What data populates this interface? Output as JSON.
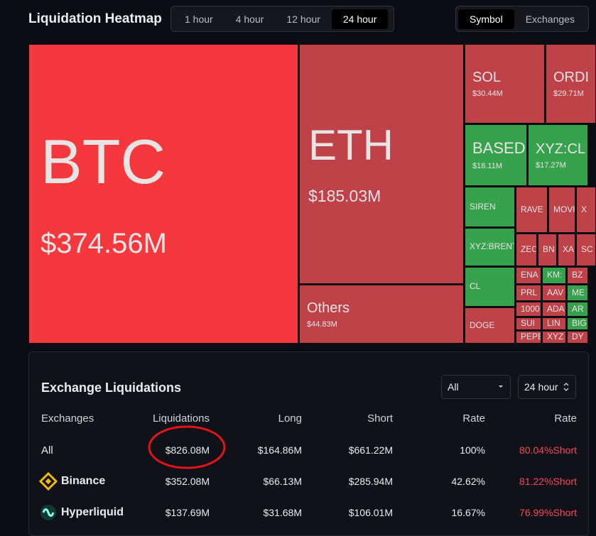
{
  "header": {
    "title": "Liquidation Heatmap",
    "time_tabs": [
      "1 hour",
      "4 hour",
      "12 hour",
      "24 hour"
    ],
    "view_tabs": [
      "Symbol",
      "Exchanges"
    ]
  },
  "heatmap": {
    "tiles": [
      {
        "symbol": "BTC",
        "value": "$374.56M"
      },
      {
        "symbol": "ETH",
        "value": "$185.03M"
      },
      {
        "symbol": "Others",
        "value": "$44.83M"
      },
      {
        "symbol": "SOL",
        "value": "$30.44M"
      },
      {
        "symbol": "ORDI",
        "value": "$29.71M"
      },
      {
        "symbol": "BASED",
        "value": "$18.11M"
      },
      {
        "symbol": "XYZ:CL",
        "value": "$17.27M"
      },
      {
        "symbol": "SIREN"
      },
      {
        "symbol": "XYZ:BRENT"
      },
      {
        "symbol": "CL"
      },
      {
        "symbol": "DOGE"
      },
      {
        "symbol": "RAVE"
      },
      {
        "symbol": "MOVR"
      },
      {
        "symbol": "X"
      },
      {
        "symbol": "ZEC"
      },
      {
        "symbol": "BN"
      },
      {
        "symbol": "XA"
      },
      {
        "symbol": "SC"
      },
      {
        "symbol": "ENA"
      },
      {
        "symbol": "KM:"
      },
      {
        "symbol": "BZ"
      },
      {
        "symbol": "PRL"
      },
      {
        "symbol": "AAV"
      },
      {
        "symbol": "ME"
      },
      {
        "symbol": "1000"
      },
      {
        "symbol": "ADA"
      },
      {
        "symbol": "AR"
      },
      {
        "symbol": "SUI"
      },
      {
        "symbol": "LIN"
      },
      {
        "symbol": "BIG"
      },
      {
        "symbol": "PEPE"
      },
      {
        "symbol": "XYZ"
      },
      {
        "symbol": "DY"
      }
    ]
  },
  "exchange_panel": {
    "title": "Exchange Liquidations",
    "filter": "All",
    "period": "24 hour",
    "table": {
      "columns": [
        "Exchanges",
        "Liquidations",
        "Long",
        "Short",
        "Rate",
        "Rate"
      ],
      "rows": [
        [
          "All",
          "$826.08M",
          "$164.86M",
          "$661.22M",
          "100%",
          "80.04%Short"
        ],
        [
          "Binance",
          "$352.08M",
          "$66.13M",
          "$285.94M",
          "42.62%",
          "81.22%Short"
        ],
        [
          "Hyperliquid",
          "$137.69M",
          "$31.68M",
          "$106.01M",
          "16.67%",
          "76.99%Short"
        ]
      ]
    }
  }
}
